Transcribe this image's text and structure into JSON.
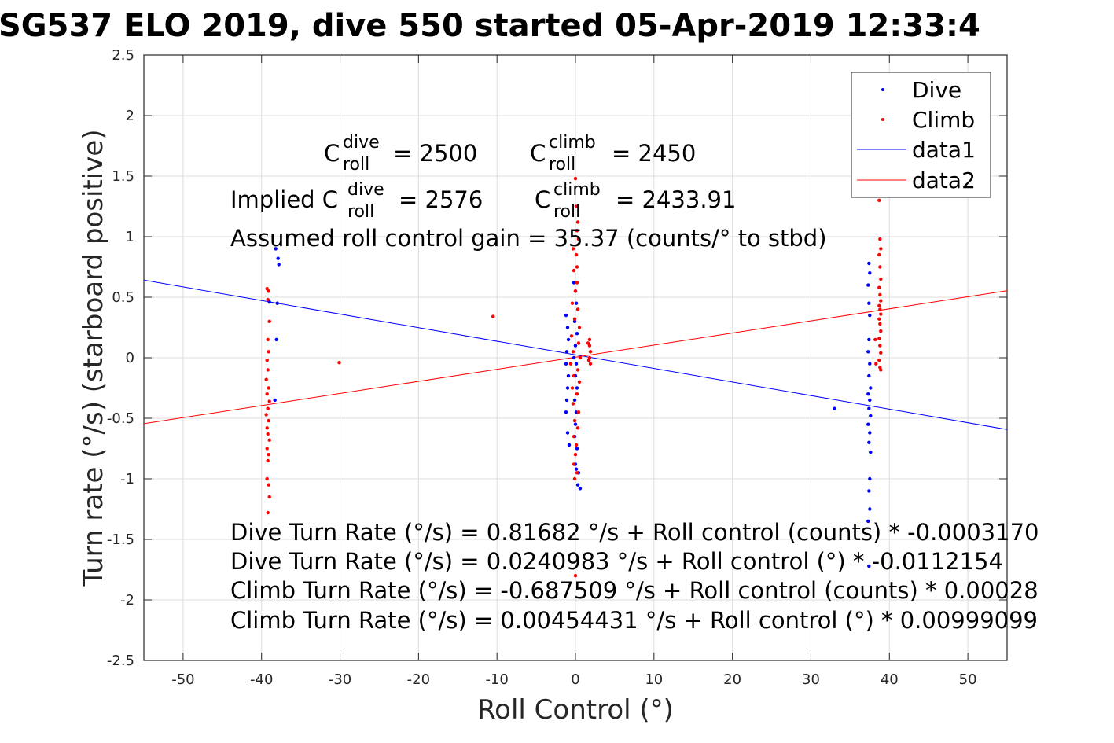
{
  "chart_data": {
    "type": "scatter",
    "title": "SG537 ELO 2019, dive 550 started 05-Apr-2019 12:33:4",
    "xlabel": "Roll Control (°)",
    "ylabel": "Turn rate (°/s) (starboard positive)",
    "xlim": [
      -55,
      55
    ],
    "ylim": [
      -2.5,
      2.5
    ],
    "xticks": [
      "-50",
      "-40",
      "-30",
      "-20",
      "-10",
      "0",
      "10",
      "20",
      "30",
      "40",
      "50"
    ],
    "yticks": [
      "-2.5",
      "-2",
      "-1.5",
      "-1",
      "-0.5",
      "0",
      "0.5",
      "1",
      "1.5",
      "2",
      "2.5"
    ],
    "grid": true,
    "legend_position": "top-right",
    "colors": {
      "dive": "#0000ff",
      "climb": "#ff0000",
      "axes": "#262626",
      "grid": "#dcdcdc"
    },
    "series": [
      {
        "name": "Dive",
        "kind": "points",
        "points": [
          [
            -38.2,
            0.9
          ],
          [
            -37.9,
            0.82
          ],
          [
            -37.8,
            0.77
          ],
          [
            -38.0,
            0.45
          ],
          [
            -38.1,
            0.15
          ],
          [
            -39.0,
            0.46
          ],
          [
            -38.3,
            -0.35
          ],
          [
            -1.2,
            0.35
          ],
          [
            -1.0,
            0.25
          ],
          [
            -0.9,
            0.15
          ],
          [
            -1.1,
            0.05
          ],
          [
            -1.2,
            -0.05
          ],
          [
            -0.9,
            -0.15
          ],
          [
            -1.0,
            -0.25
          ],
          [
            -1.1,
            -0.35
          ],
          [
            -1.2,
            -0.45
          ],
          [
            -1.0,
            -0.62
          ],
          [
            -0.8,
            -0.72
          ],
          [
            -0.2,
            0.62
          ],
          [
            0.0,
            0.55
          ],
          [
            0.1,
            0.45
          ],
          [
            -0.1,
            0.3
          ],
          [
            0.2,
            0.2
          ],
          [
            0.0,
            0.1
          ],
          [
            -0.2,
            0.0
          ],
          [
            0.1,
            -0.05
          ],
          [
            0.0,
            -0.15
          ],
          [
            0.2,
            -0.25
          ],
          [
            -0.1,
            -0.35
          ],
          [
            0.1,
            -0.45
          ],
          [
            0.0,
            -0.55
          ],
          [
            -0.1,
            -0.65
          ],
          [
            0.2,
            -0.75
          ],
          [
            0.0,
            -0.88
          ],
          [
            0.1,
            -0.92
          ],
          [
            0.3,
            -1.05
          ],
          [
            0.6,
            -1.08
          ],
          [
            0.4,
            -0.95
          ],
          [
            33.0,
            -0.42
          ],
          [
            37.4,
            0.78
          ],
          [
            37.5,
            0.7
          ],
          [
            37.3,
            0.6
          ],
          [
            37.4,
            0.45
          ],
          [
            37.5,
            0.35
          ],
          [
            37.4,
            0.15
          ],
          [
            37.3,
            0.05
          ],
          [
            37.5,
            -0.05
          ],
          [
            37.4,
            -0.15
          ],
          [
            37.6,
            -0.25
          ],
          [
            37.3,
            -0.3
          ],
          [
            37.5,
            -0.35
          ],
          [
            37.4,
            -0.42
          ],
          [
            37.6,
            -0.48
          ],
          [
            37.3,
            -0.55
          ],
          [
            37.5,
            -0.62
          ],
          [
            37.4,
            -0.7
          ],
          [
            37.6,
            -0.78
          ],
          [
            37.5,
            -1.0
          ],
          [
            37.4,
            -1.1
          ],
          [
            37.5,
            -1.25
          ],
          [
            37.3,
            -1.35
          ],
          [
            37.4,
            -1.72
          ]
        ]
      },
      {
        "name": "Climb",
        "kind": "points",
        "points": [
          [
            -39.3,
            0.57
          ],
          [
            -39.1,
            0.55
          ],
          [
            -39.2,
            0.48
          ],
          [
            -39.0,
            0.3
          ],
          [
            -39.2,
            0.15
          ],
          [
            -39.1,
            0.05
          ],
          [
            -39.3,
            -0.02
          ],
          [
            -39.2,
            -0.1
          ],
          [
            -39.4,
            -0.18
          ],
          [
            -39.1,
            -0.25
          ],
          [
            -39.3,
            -0.3
          ],
          [
            -39.0,
            -0.36
          ],
          [
            -39.2,
            -0.42
          ],
          [
            -39.4,
            -0.47
          ],
          [
            -39.1,
            -0.52
          ],
          [
            -39.3,
            -0.58
          ],
          [
            -39.2,
            -0.63
          ],
          [
            -39.0,
            -0.68
          ],
          [
            -39.3,
            -0.75
          ],
          [
            -39.1,
            -0.8
          ],
          [
            -39.2,
            -0.85
          ],
          [
            -39.3,
            -1.0
          ],
          [
            -39.1,
            -1.05
          ],
          [
            -39.0,
            -1.15
          ],
          [
            -39.2,
            -1.28
          ],
          [
            -30.1,
            -0.04
          ],
          [
            -10.5,
            0.34
          ],
          [
            -0.3,
            0.9
          ],
          [
            0.1,
            0.85
          ],
          [
            -0.2,
            0.72
          ],
          [
            0.2,
            0.62
          ],
          [
            0.0,
            0.55
          ],
          [
            -0.4,
            0.45
          ],
          [
            0.3,
            0.4
          ],
          [
            -0.1,
            0.32
          ],
          [
            0.5,
            0.25
          ],
          [
            -0.5,
            0.18
          ],
          [
            0.4,
            0.12
          ],
          [
            -0.3,
            0.05
          ],
          [
            0.6,
            0.0
          ],
          [
            -0.6,
            -0.05
          ],
          [
            0.3,
            -0.1
          ],
          [
            -0.2,
            -0.15
          ],
          [
            0.5,
            -0.2
          ],
          [
            -0.4,
            -0.25
          ],
          [
            0.2,
            -0.3
          ],
          [
            -0.3,
            -0.38
          ],
          [
            0.4,
            -0.45
          ],
          [
            -0.1,
            -0.52
          ],
          [
            0.3,
            -0.58
          ],
          [
            -0.2,
            -0.65
          ],
          [
            0.1,
            -0.72
          ],
          [
            0.0,
            -0.8
          ],
          [
            -0.2,
            -0.88
          ],
          [
            0.2,
            -0.95
          ],
          [
            -0.1,
            -1.0
          ],
          [
            0.0,
            -1.8
          ],
          [
            0.0,
            1.48
          ],
          [
            0.1,
            1.25
          ],
          [
            0.3,
            1.12
          ],
          [
            0.2,
            1.05
          ],
          [
            0.4,
            0.98
          ],
          [
            0.2,
            0.75
          ],
          [
            1.8,
            0.15
          ],
          [
            1.8,
            0.1
          ],
          [
            1.9,
            0.05
          ],
          [
            1.8,
            0.0
          ],
          [
            1.9,
            -0.05
          ],
          [
            1.6,
            0.12
          ],
          [
            1.7,
            -0.02
          ],
          [
            38.7,
            1.3
          ],
          [
            38.8,
            0.98
          ],
          [
            38.9,
            0.9
          ],
          [
            38.7,
            0.85
          ],
          [
            38.8,
            0.75
          ],
          [
            38.9,
            0.65
          ],
          [
            38.7,
            0.58
          ],
          [
            38.8,
            0.52
          ],
          [
            38.9,
            0.47
          ],
          [
            38.7,
            0.43
          ],
          [
            38.8,
            0.4
          ],
          [
            38.9,
            0.36
          ],
          [
            38.7,
            0.32
          ],
          [
            38.8,
            0.28
          ],
          [
            38.9,
            0.22
          ],
          [
            38.7,
            0.16
          ],
          [
            38.8,
            0.1
          ],
          [
            38.9,
            0.04
          ],
          [
            38.7,
            -0.02
          ],
          [
            38.8,
            -0.08
          ],
          [
            38.9,
            -0.1
          ],
          [
            38.2,
            0.15
          ],
          [
            38.3,
            -0.05
          ]
        ]
      },
      {
        "name": "data1",
        "kind": "line",
        "color": "#0000ff",
        "points": [
          [
            -55,
            0.6408
          ],
          [
            55,
            -0.5931
          ]
        ]
      },
      {
        "name": "data2",
        "kind": "line",
        "color": "#ff0000",
        "points": [
          [
            -55,
            -0.545
          ],
          [
            55,
            0.5541
          ]
        ]
      }
    ],
    "annotations": {
      "c_dive": {
        "prefix": "C",
        "sup": "dive",
        "sub": "roll",
        "value": "= 2500"
      },
      "c_climb": {
        "prefix": "C",
        "sup": "climb",
        "sub": "roll",
        "value": "= 2450"
      },
      "implied_dive": {
        "lead": "Implied C",
        "sup": "dive",
        "sub": "roll",
        "value": "= 2576"
      },
      "implied_climb": {
        "prefix": "C",
        "sup": "climb",
        "sub": "roll",
        "value": "= 2433.91"
      },
      "gain": "Assumed roll control gain = 35.37 (counts/° to stbd)",
      "eq1": "Dive Turn Rate (°/s) = 0.81682 °/s + Roll control (counts) * -0.0003170",
      "eq2": "Dive Turn Rate (°/s) = 0.0240983 °/s + Roll control (°) * -0.0112154",
      "eq3": "Climb Turn Rate (°/s) = -0.687509 °/s + Roll control (counts) * 0.00028",
      "eq4": "Climb Turn Rate (°/s) = 0.00454431 °/s + Roll control (°) * 0.00999099"
    }
  }
}
